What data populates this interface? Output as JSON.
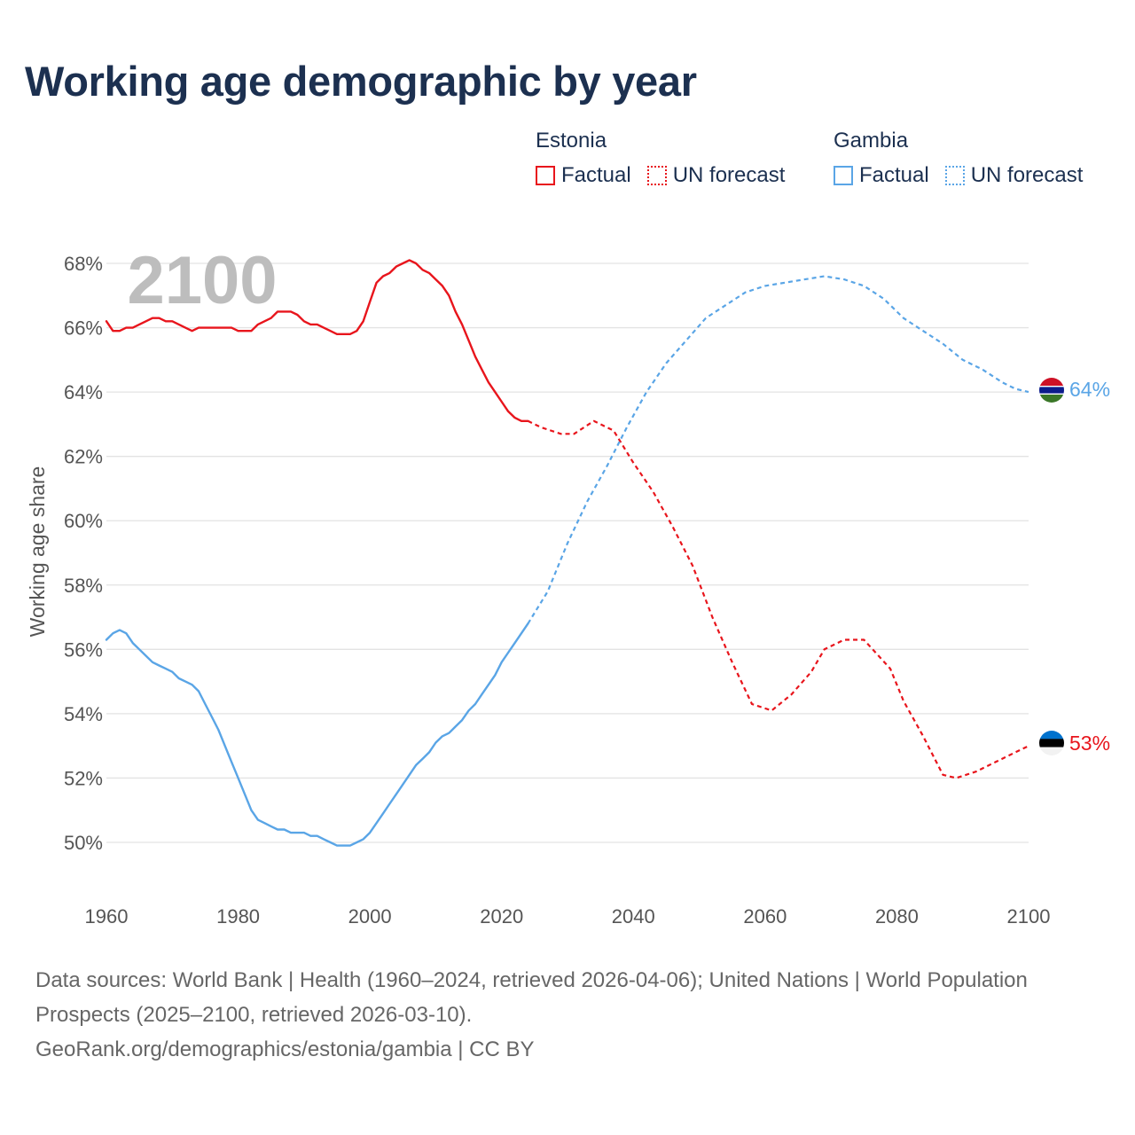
{
  "title": "Working age demographic by year",
  "legend": {
    "groups": [
      {
        "name": "Estonia",
        "color": "#e8151c",
        "factual_label": "Factual",
        "forecast_label": "UN forecast"
      },
      {
        "name": "Gambia",
        "color": "#5aa5e6",
        "factual_label": "Factual",
        "forecast_label": "UN forecast"
      }
    ]
  },
  "year_watermark": "2100",
  "footer": {
    "sources": "Data sources: World Bank | Health (1960–2024, retrieved 2026-04-06); United Nations | World Population Prospects (2025–2100, retrieved 2026-03-10).",
    "link": "GeoRank.org/demographics/estonia/gambia | CC BY"
  },
  "chart_data": {
    "type": "line",
    "title": "Working age demographic by year",
    "xlabel": "",
    "ylabel": "Working age share",
    "xlim": [
      1960,
      2100
    ],
    "ylim": [
      49,
      68
    ],
    "x_ticks": [
      1960,
      1980,
      2000,
      2020,
      2040,
      2060,
      2080,
      2100
    ],
    "x_tick_labels": [
      "1960",
      "1980",
      "2000",
      "2020",
      "2040",
      "2060",
      "2080",
      "2100"
    ],
    "y_ticks": [
      50,
      52,
      54,
      56,
      58,
      60,
      62,
      64,
      66,
      68
    ],
    "y_tick_labels": [
      "50%",
      "52%",
      "54%",
      "56%",
      "58%",
      "60%",
      "62%",
      "64%",
      "66%",
      "68%"
    ],
    "factual_until": 2024,
    "series": [
      {
        "name": "Estonia",
        "color": "#e8151c",
        "end_label": "53%",
        "x": [
          1960,
          1961,
          1962,
          1963,
          1964,
          1965,
          1966,
          1967,
          1968,
          1969,
          1970,
          1971,
          1972,
          1973,
          1974,
          1975,
          1976,
          1977,
          1978,
          1979,
          1980,
          1981,
          1982,
          1983,
          1984,
          1985,
          1986,
          1987,
          1988,
          1989,
          1990,
          1991,
          1992,
          1993,
          1994,
          1995,
          1996,
          1997,
          1998,
          1999,
          2000,
          2001,
          2002,
          2003,
          2004,
          2005,
          2006,
          2007,
          2008,
          2009,
          2010,
          2011,
          2012,
          2013,
          2014,
          2015,
          2016,
          2017,
          2018,
          2019,
          2020,
          2021,
          2022,
          2023,
          2024,
          2026,
          2029,
          2031,
          2034,
          2037,
          2040,
          2043,
          2046,
          2049,
          2052,
          2055,
          2058,
          2061,
          2064,
          2067,
          2069,
          2072,
          2075,
          2079,
          2081,
          2084,
          2087,
          2089,
          2092,
          2095,
          2098,
          2100
        ],
        "values": [
          66.2,
          65.9,
          65.9,
          66.0,
          66.0,
          66.1,
          66.2,
          66.3,
          66.3,
          66.2,
          66.2,
          66.1,
          66.0,
          65.9,
          66.0,
          66.0,
          66.0,
          66.0,
          66.0,
          66.0,
          65.9,
          65.9,
          65.9,
          66.1,
          66.2,
          66.3,
          66.5,
          66.5,
          66.5,
          66.4,
          66.2,
          66.1,
          66.1,
          66.0,
          65.9,
          65.8,
          65.8,
          65.8,
          65.9,
          66.2,
          66.8,
          67.4,
          67.6,
          67.7,
          67.9,
          68.0,
          68.1,
          68.0,
          67.8,
          67.7,
          67.5,
          67.3,
          67.0,
          66.5,
          66.1,
          65.6,
          65.1,
          64.7,
          64.3,
          64.0,
          63.7,
          63.4,
          63.2,
          63.1,
          63.1,
          62.9,
          62.7,
          62.7,
          63.1,
          62.8,
          61.8,
          60.9,
          59.8,
          58.6,
          57.0,
          55.6,
          54.3,
          54.1,
          54.6,
          55.3,
          56.0,
          56.3,
          56.3,
          55.4,
          54.4,
          53.3,
          52.1,
          52.0,
          52.2,
          52.5,
          52.8,
          53.0
        ]
      },
      {
        "name": "Gambia",
        "color": "#5aa5e6",
        "end_label": "64%",
        "x": [
          1960,
          1961,
          1962,
          1963,
          1964,
          1965,
          1966,
          1967,
          1968,
          1969,
          1970,
          1971,
          1972,
          1973,
          1974,
          1975,
          1976,
          1977,
          1978,
          1979,
          1980,
          1981,
          1982,
          1983,
          1984,
          1985,
          1986,
          1987,
          1988,
          1989,
          1990,
          1991,
          1992,
          1993,
          1994,
          1995,
          1996,
          1997,
          1998,
          1999,
          2000,
          2001,
          2002,
          2003,
          2004,
          2005,
          2006,
          2007,
          2008,
          2009,
          2010,
          2011,
          2012,
          2013,
          2014,
          2015,
          2016,
          2017,
          2018,
          2019,
          2020,
          2021,
          2022,
          2023,
          2024,
          2027,
          2030,
          2033,
          2036,
          2039,
          2042,
          2045,
          2048,
          2051,
          2054,
          2057,
          2060,
          2063,
          2066,
          2069,
          2072,
          2075,
          2078,
          2081,
          2084,
          2087,
          2090,
          2093,
          2096,
          2098,
          2100
        ],
        "values": [
          56.3,
          56.5,
          56.6,
          56.5,
          56.2,
          56.0,
          55.8,
          55.6,
          55.5,
          55.4,
          55.3,
          55.1,
          55.0,
          54.9,
          54.7,
          54.3,
          53.9,
          53.5,
          53.0,
          52.5,
          52.0,
          51.5,
          51.0,
          50.7,
          50.6,
          50.5,
          50.4,
          50.4,
          50.3,
          50.3,
          50.3,
          50.2,
          50.2,
          50.1,
          50.0,
          49.9,
          49.9,
          49.9,
          50.0,
          50.1,
          50.3,
          50.6,
          50.9,
          51.2,
          51.5,
          51.8,
          52.1,
          52.4,
          52.6,
          52.8,
          53.1,
          53.3,
          53.4,
          53.6,
          53.8,
          54.1,
          54.3,
          54.6,
          54.9,
          55.2,
          55.6,
          55.9,
          56.2,
          56.5,
          56.8,
          57.8,
          59.3,
          60.6,
          61.7,
          62.9,
          64.0,
          64.9,
          65.6,
          66.3,
          66.7,
          67.1,
          67.3,
          67.4,
          67.5,
          67.6,
          67.5,
          67.3,
          66.9,
          66.3,
          65.9,
          65.5,
          65.0,
          64.7,
          64.3,
          64.1,
          64.0
        ]
      }
    ]
  }
}
